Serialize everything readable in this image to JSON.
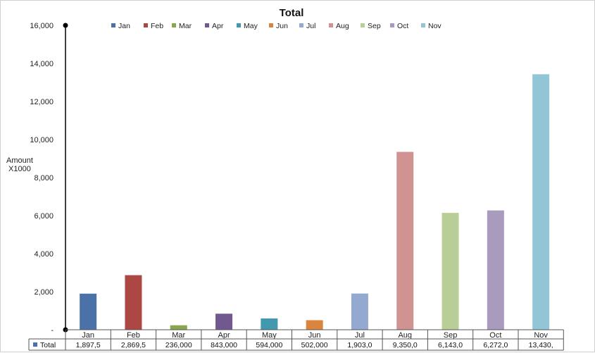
{
  "chart_data": {
    "type": "bar",
    "title": "Total",
    "ylabel_line1": "Amount",
    "ylabel_line2": "X1000",
    "xlabel": "",
    "ylim": [
      0,
      16000
    ],
    "y_ticks": [
      "-",
      "2,000",
      "4,000",
      "6,000",
      "8,000",
      "10,000",
      "12,000",
      "14,000",
      "16,000"
    ],
    "grid": false,
    "legend_position": "top",
    "categories": [
      "Jan",
      "Feb",
      "Mar",
      "Apr",
      "May",
      "Jun",
      "Jul",
      "Aug",
      "Sep",
      "Oct",
      "Nov"
    ],
    "values": [
      1897.5,
      2869.5,
      236,
      843,
      594,
      502,
      1903,
      9350,
      6143,
      6272,
      13430
    ],
    "colors": [
      "#4a72a9",
      "#ad4744",
      "#89a54e",
      "#71588f",
      "#4198af",
      "#db843d",
      "#93a9cf",
      "#d09392",
      "#b9cd96",
      "#a99bbd",
      "#92c5d6"
    ],
    "table": {
      "row_label": "Total",
      "row_label_color": "#4a72a9",
      "cells": [
        "1,897,5",
        "2,869,5",
        "236,000",
        "843,000",
        "594,000",
        "502,000",
        "1,903,0",
        "9,350,0",
        "6,143,0",
        "6,272,0",
        "13,430,"
      ]
    }
  }
}
